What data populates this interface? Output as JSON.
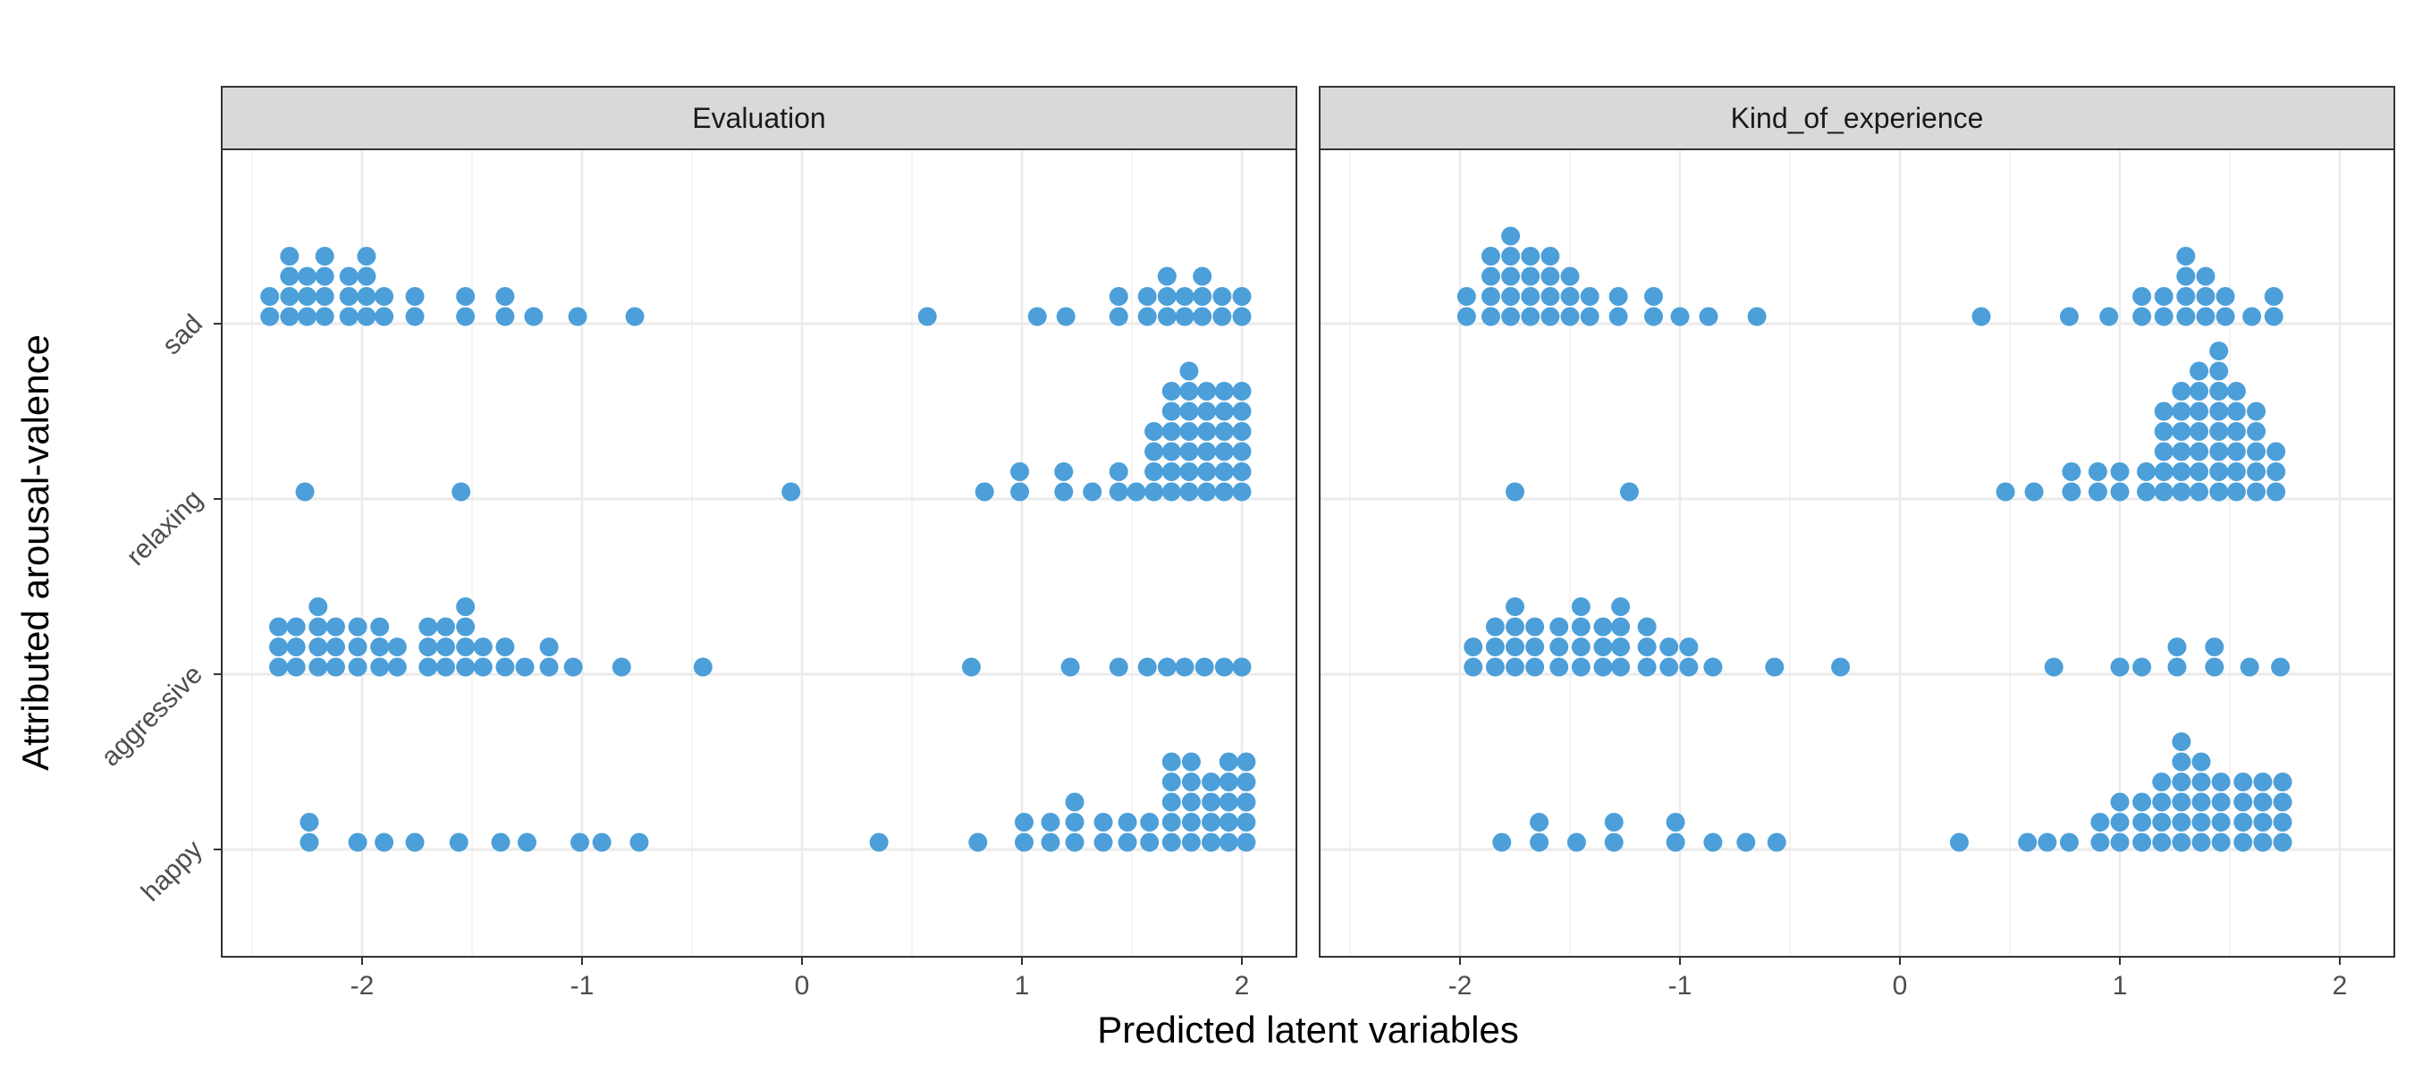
{
  "chart_data": {
    "type": "dotplot",
    "xlabel": "Predicted latent variables",
    "ylabel": "Attributed arousal-valence",
    "xlim": [
      -2.6,
      2.25
    ],
    "x_ticks": [
      -2,
      -1,
      0,
      1,
      2
    ],
    "x_tick_labels": [
      "-2",
      "-1",
      "0",
      "1",
      "2"
    ],
    "categories": [
      "happy",
      "aggressive",
      "relaxing",
      "sad"
    ],
    "grid": true,
    "dot_color": "#4C9FD9",
    "panels": [
      {
        "title": "Evaluation",
        "bins": {
          "sad": [
            [
              -2.42,
              2
            ],
            [
              -2.33,
              4
            ],
            [
              -2.25,
              3
            ],
            [
              -2.17,
              4
            ],
            [
              -2.06,
              3
            ],
            [
              -1.98,
              4
            ],
            [
              -1.9,
              2
            ],
            [
              -1.76,
              2
            ],
            [
              -1.53,
              2
            ],
            [
              -1.35,
              2
            ],
            [
              -1.22,
              1
            ],
            [
              -1.02,
              1
            ],
            [
              -0.76,
              1
            ],
            [
              0.57,
              1
            ],
            [
              1.07,
              1
            ],
            [
              1.2,
              1
            ],
            [
              1.44,
              2
            ],
            [
              1.57,
              2
            ],
            [
              1.66,
              3
            ],
            [
              1.74,
              2
            ],
            [
              1.82,
              3
            ],
            [
              1.91,
              2
            ],
            [
              2.0,
              2
            ]
          ],
          "relaxing": [
            [
              -2.26,
              1
            ],
            [
              -1.55,
              1
            ],
            [
              -0.05,
              1
            ],
            [
              0.83,
              1
            ],
            [
              0.99,
              2
            ],
            [
              1.19,
              2
            ],
            [
              1.32,
              1
            ],
            [
              1.44,
              2
            ],
            [
              1.52,
              1
            ],
            [
              1.6,
              4
            ],
            [
              1.68,
              6
            ],
            [
              1.76,
              7
            ],
            [
              1.84,
              6
            ],
            [
              1.92,
              6
            ],
            [
              2.0,
              6
            ]
          ],
          "aggressive": [
            [
              -2.38,
              3
            ],
            [
              -2.3,
              3
            ],
            [
              -2.2,
              4
            ],
            [
              -2.12,
              3
            ],
            [
              -2.02,
              3
            ],
            [
              -1.92,
              3
            ],
            [
              -1.84,
              2
            ],
            [
              -1.7,
              3
            ],
            [
              -1.62,
              3
            ],
            [
              -1.53,
              4
            ],
            [
              -1.45,
              2
            ],
            [
              -1.35,
              2
            ],
            [
              -1.26,
              1
            ],
            [
              -1.15,
              2
            ],
            [
              -1.04,
              1
            ],
            [
              -0.82,
              1
            ],
            [
              -0.45,
              1
            ],
            [
              0.77,
              1
            ],
            [
              1.22,
              1
            ],
            [
              1.44,
              1
            ],
            [
              1.57,
              1
            ],
            [
              1.66,
              1
            ],
            [
              1.74,
              1
            ],
            [
              1.83,
              1
            ],
            [
              1.92,
              1
            ],
            [
              2.0,
              1
            ]
          ],
          "happy": [
            [
              -2.24,
              2
            ],
            [
              -2.02,
              1
            ],
            [
              -1.9,
              1
            ],
            [
              -1.76,
              1
            ],
            [
              -1.56,
              1
            ],
            [
              -1.37,
              1
            ],
            [
              -1.25,
              1
            ],
            [
              -1.01,
              1
            ],
            [
              -0.91,
              1
            ],
            [
              -0.74,
              1
            ],
            [
              0.35,
              1
            ],
            [
              0.8,
              1
            ],
            [
              1.01,
              2
            ],
            [
              1.13,
              2
            ],
            [
              1.24,
              3
            ],
            [
              1.37,
              2
            ],
            [
              1.48,
              2
            ],
            [
              1.58,
              2
            ],
            [
              1.68,
              5
            ],
            [
              1.77,
              5
            ],
            [
              1.86,
              4
            ],
            [
              1.94,
              5
            ],
            [
              2.02,
              5
            ]
          ]
        }
      },
      {
        "title": "Kind_of_experience",
        "bins": {
          "sad": [
            [
              -1.97,
              2
            ],
            [
              -1.86,
              4
            ],
            [
              -1.77,
              5
            ],
            [
              -1.68,
              4
            ],
            [
              -1.59,
              4
            ],
            [
              -1.5,
              3
            ],
            [
              -1.41,
              2
            ],
            [
              -1.28,
              2
            ],
            [
              -1.12,
              2
            ],
            [
              -1.0,
              1
            ],
            [
              -0.87,
              1
            ],
            [
              -0.65,
              1
            ],
            [
              0.37,
              1
            ],
            [
              0.77,
              1
            ],
            [
              0.95,
              1
            ],
            [
              1.1,
              2
            ],
            [
              1.2,
              2
            ],
            [
              1.3,
              4
            ],
            [
              1.39,
              3
            ],
            [
              1.48,
              2
            ],
            [
              1.6,
              1
            ],
            [
              1.7,
              2
            ]
          ],
          "relaxing": [
            [
              -1.75,
              1
            ],
            [
              -1.23,
              1
            ],
            [
              0.48,
              1
            ],
            [
              0.61,
              1
            ],
            [
              0.78,
              2
            ],
            [
              0.9,
              2
            ],
            [
              1.0,
              2
            ],
            [
              1.12,
              2
            ],
            [
              1.2,
              5
            ],
            [
              1.28,
              6
            ],
            [
              1.36,
              7
            ],
            [
              1.45,
              8
            ],
            [
              1.53,
              6
            ],
            [
              1.62,
              5
            ],
            [
              1.71,
              3
            ]
          ],
          "aggressive": [
            [
              -1.94,
              2
            ],
            [
              -1.84,
              3
            ],
            [
              -1.75,
              4
            ],
            [
              -1.66,
              3
            ],
            [
              -1.55,
              3
            ],
            [
              -1.45,
              4
            ],
            [
              -1.35,
              3
            ],
            [
              -1.27,
              4
            ],
            [
              -1.15,
              3
            ],
            [
              -1.05,
              2
            ],
            [
              -0.96,
              2
            ],
            [
              -0.85,
              1
            ],
            [
              -0.57,
              1
            ],
            [
              -0.27,
              1
            ],
            [
              0.7,
              1
            ],
            [
              1.0,
              1
            ],
            [
              1.1,
              1
            ],
            [
              1.26,
              2
            ],
            [
              1.43,
              2
            ],
            [
              1.59,
              1
            ],
            [
              1.73,
              1
            ]
          ],
          "happy": [
            [
              -1.81,
              1
            ],
            [
              -1.64,
              2
            ],
            [
              -1.47,
              1
            ],
            [
              -1.3,
              2
            ],
            [
              -1.02,
              2
            ],
            [
              -0.85,
              1
            ],
            [
              -0.7,
              1
            ],
            [
              -0.56,
              1
            ],
            [
              0.27,
              1
            ],
            [
              0.58,
              1
            ],
            [
              0.67,
              1
            ],
            [
              0.77,
              1
            ],
            [
              0.91,
              2
            ],
            [
              1.0,
              3
            ],
            [
              1.1,
              3
            ],
            [
              1.19,
              4
            ],
            [
              1.28,
              6
            ],
            [
              1.37,
              5
            ],
            [
              1.46,
              4
            ],
            [
              1.56,
              4
            ],
            [
              1.65,
              4
            ],
            [
              1.74,
              4
            ]
          ]
        }
      }
    ]
  }
}
